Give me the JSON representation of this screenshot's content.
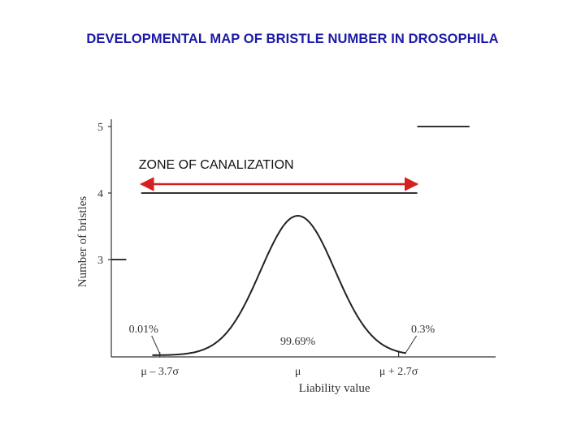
{
  "slide": {
    "title": "DEVELOPMENTAL MAP OF BRISTLE NUMBER IN DROSOPHILA",
    "title_color": "#1a1aa6"
  },
  "chart_data": {
    "type": "line",
    "title": "",
    "xlabel": "Liability value",
    "ylabel": "Number of bristles",
    "y_ticks": [
      "3",
      "4",
      "5"
    ],
    "x_ticks": [
      {
        "label": "μ – 3.7σ",
        "value": -3.7
      },
      {
        "label": "μ",
        "value": 0
      },
      {
        "label": "μ + 2.7σ",
        "value": 2.7
      }
    ],
    "xlim": [
      -5.0,
      5.3
    ],
    "bristle_levels": [
      {
        "bristles": 3,
        "from": -5.0,
        "to": -4.6
      },
      {
        "bristles": 4,
        "from": -4.2,
        "to": 3.2
      },
      {
        "bristles": 5,
        "from": 3.2,
        "to": 4.6
      }
    ],
    "series": [
      {
        "type": "normal-curve",
        "mean": 0,
        "sd": 1
      }
    ],
    "annotations": [
      {
        "text": "0.01%",
        "region": "below μ – 3.7σ"
      },
      {
        "text": "99.69%",
        "region": "between thresholds"
      },
      {
        "text": "0.3%",
        "region": "above μ + 2.7σ"
      }
    ],
    "zone": {
      "label": "ZONE OF CANALIZATION",
      "from": -4.2,
      "to": 3.2,
      "arrow_color": "#d42020"
    },
    "grid": false
  }
}
